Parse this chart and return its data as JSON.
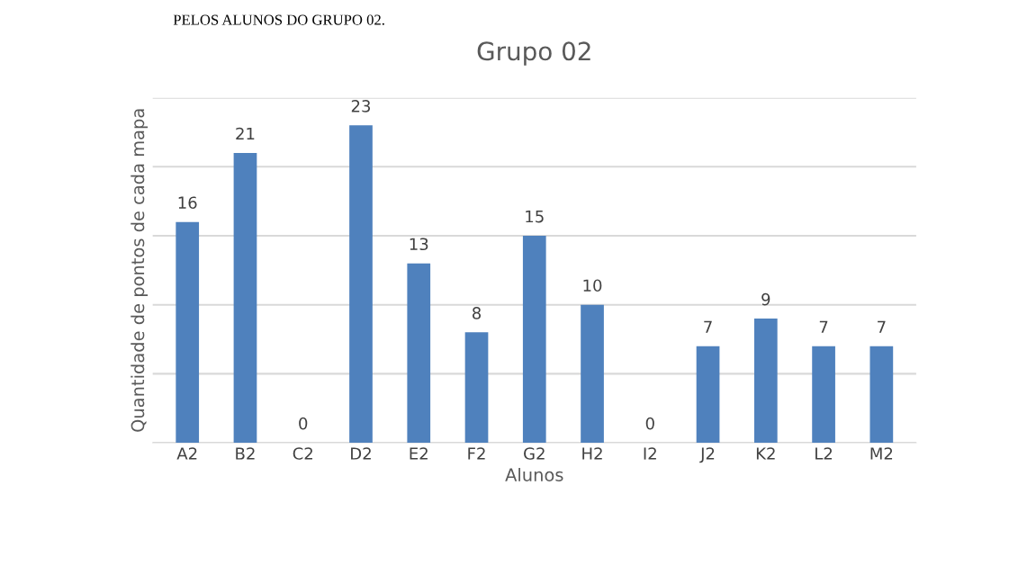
{
  "chart_data": {
    "type": "bar",
    "title": "Grupo 02",
    "xlabel": "Alunos",
    "ylabel": "Quantidade de pontos de cada mapa",
    "annotations": [
      "PELOS ALUNOS DO GRUPO 02."
    ],
    "categories": [
      "A2",
      "B2",
      "C2",
      "D2",
      "E2",
      "F2",
      "G2",
      "H2",
      "I2",
      "J2",
      "K2",
      "L2",
      "M2"
    ],
    "values": [
      16,
      21,
      0,
      23,
      13,
      8,
      15,
      10,
      0,
      7,
      9,
      7,
      7
    ],
    "color": "#4f81bd",
    "data_labels": true,
    "grid": "y",
    "ylim": [
      0,
      25
    ],
    "yticks": [
      {
        "value": 0,
        "label": null
      },
      {
        "value": 5,
        "label": null
      },
      {
        "value": 10,
        "label": null
      },
      {
        "value": 15,
        "label": null
      },
      {
        "value": 20,
        "label": null
      },
      {
        "value": 25,
        "label": null
      }
    ],
    "tick_labels": "x"
  }
}
